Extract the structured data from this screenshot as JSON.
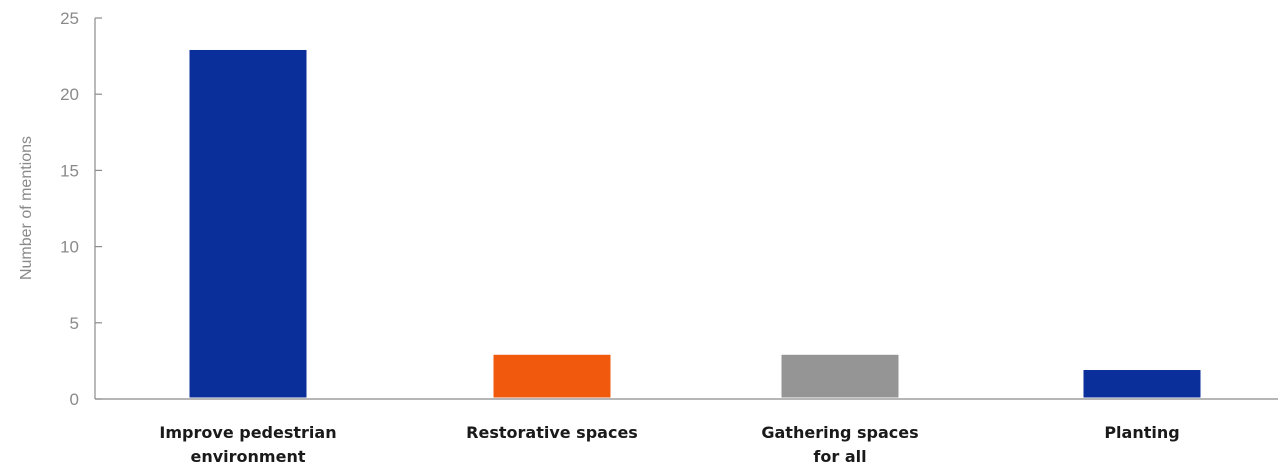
{
  "chart_data": {
    "type": "bar",
    "title": "",
    "xlabel": "",
    "ylabel": "Number of mentions",
    "ylim": [
      0,
      25
    ],
    "yticks": [
      0,
      5,
      10,
      15,
      20,
      25
    ],
    "grid": false,
    "categories": [
      [
        "Improve pedestrian",
        "environment"
      ],
      [
        "Restorative spaces"
      ],
      [
        "Gathering spaces",
        "for all"
      ],
      [
        "Planting"
      ]
    ],
    "values": [
      23,
      3,
      3,
      2
    ],
    "colors": [
      "#0a2f9a",
      "#f15a0c",
      "#959595",
      "#0a2f9a"
    ]
  }
}
